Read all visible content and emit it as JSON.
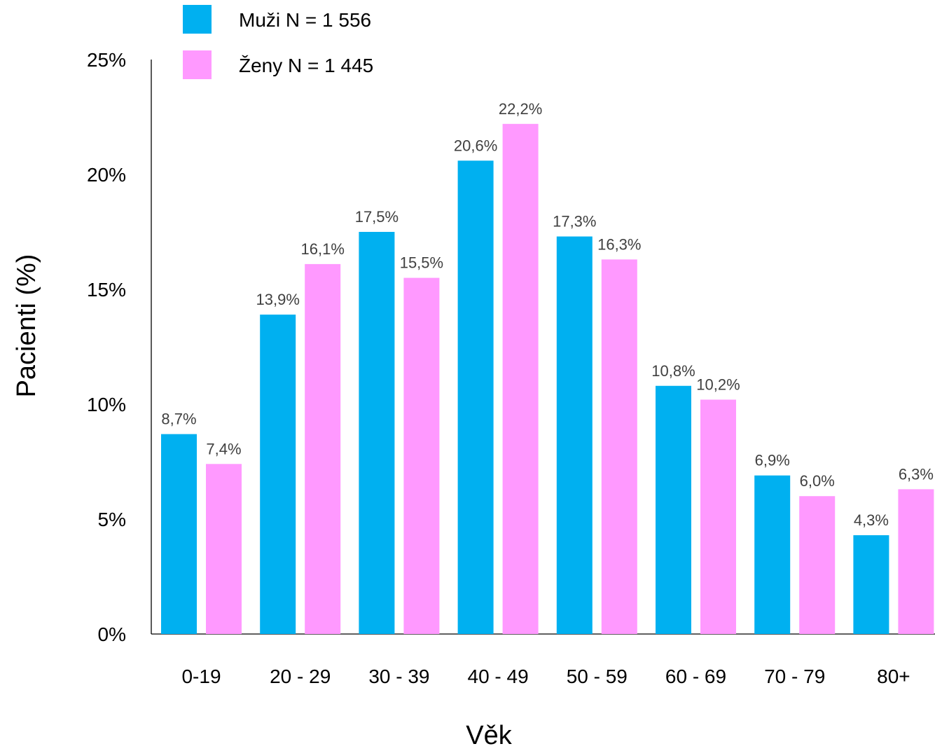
{
  "chart_data": {
    "type": "bar",
    "xlabel": "Věk",
    "ylabel": "Pacienti (%)",
    "ylim": [
      0,
      25
    ],
    "yticks": [
      0,
      5,
      10,
      15,
      20,
      25
    ],
    "ytick_labels": [
      "0%",
      "5%",
      "10%",
      "15%",
      "20%",
      "25%"
    ],
    "categories": [
      "0-19",
      "20 - 29",
      "30 - 39",
      "40 - 49",
      "50 - 59",
      "60 - 69",
      "70 - 79",
      "80+"
    ],
    "grid": false,
    "legend_position": "top-left",
    "series": [
      {
        "name": "Muži N = 1 556",
        "color": "#00B0F0",
        "values": [
          8.7,
          13.9,
          17.5,
          20.6,
          17.3,
          10.8,
          6.9,
          4.3
        ],
        "labels": [
          "8,7%",
          "13,9%",
          "17,5%",
          "20,6%",
          "17,3%",
          "10,8%",
          "6,9%",
          "4,3%"
        ]
      },
      {
        "name": "Ženy N = 1 445",
        "color": "#FF99FF",
        "values": [
          7.4,
          16.1,
          15.5,
          22.2,
          16.3,
          10.2,
          6.0,
          6.3
        ],
        "labels": [
          "7,4%",
          "16,1%",
          "15,5%",
          "22,2%",
          "16,3%",
          "10,2%",
          "6,0%",
          "6,3%"
        ]
      }
    ]
  }
}
